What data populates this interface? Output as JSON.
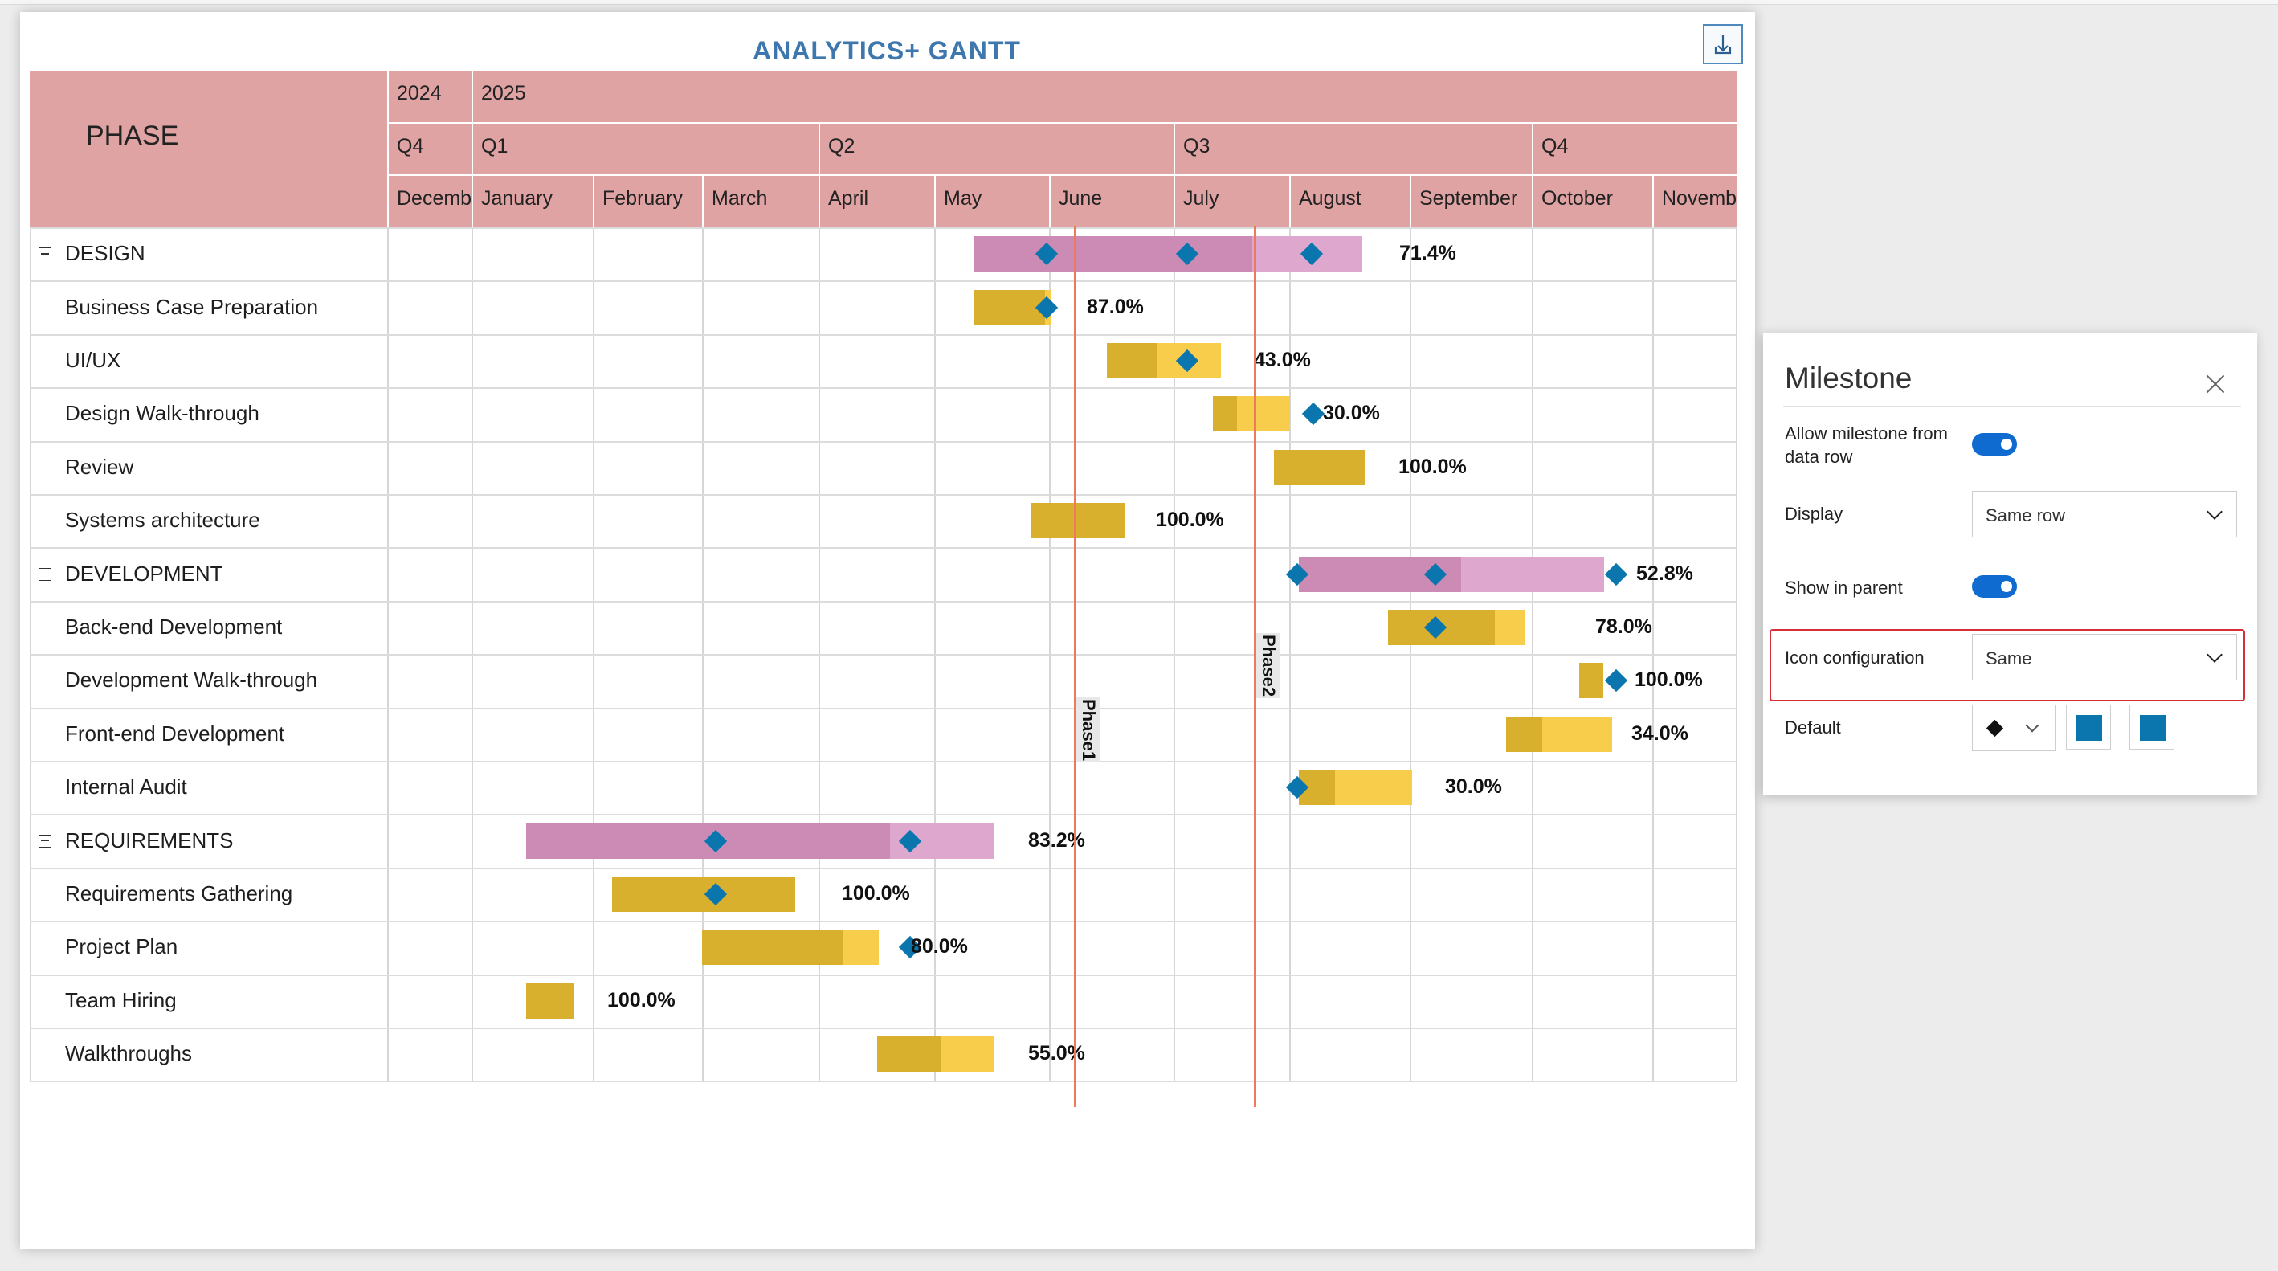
{
  "header": {
    "title": "ANALYTICS+ GANTT"
  },
  "colors": {
    "header_bg": "#e0a3a4",
    "parent_bar": "#cc8bb5",
    "parent_bar_remaining": "#dea8ce",
    "task_bar": "#d9b02e",
    "task_bar_remaining": "#f8cd4c",
    "milestone": "#0b76ae",
    "ref_line": "#ec7b5e",
    "toggle_on": "#0f6bd0"
  },
  "grid": {
    "phase_header": "PHASE",
    "years": [
      "2024",
      "2025"
    ],
    "quarters": [
      "Q4",
      "Q1",
      "Q2",
      "Q3",
      "Q4"
    ],
    "months": [
      "Decemb",
      "January",
      "February",
      "March",
      "April",
      "May",
      "June",
      "July",
      "August",
      "September",
      "October",
      "Novemb"
    ]
  },
  "rows": [
    {
      "label": "DESIGN",
      "parent": true,
      "pct": "71.4%"
    },
    {
      "label": "Business Case Preparation",
      "parent": false,
      "pct": "87.0%"
    },
    {
      "label": "UI/UX",
      "parent": false,
      "pct": "43.0%"
    },
    {
      "label": "Design Walk-through",
      "parent": false,
      "pct": "30.0%"
    },
    {
      "label": "Review",
      "parent": false,
      "pct": "100.0%"
    },
    {
      "label": "Systems architecture",
      "parent": false,
      "pct": "100.0%"
    },
    {
      "label": "DEVELOPMENT",
      "parent": true,
      "pct": "52.8%"
    },
    {
      "label": "Back-end Development",
      "parent": false,
      "pct": "78.0%"
    },
    {
      "label": "Development Walk-through",
      "parent": false,
      "pct": "100.0%"
    },
    {
      "label": "Front-end Development",
      "parent": false,
      "pct": "34.0%"
    },
    {
      "label": "Internal Audit",
      "parent": false,
      "pct": "30.0%"
    },
    {
      "label": "REQUIREMENTS",
      "parent": true,
      "pct": "83.2%"
    },
    {
      "label": "Requirements Gathering",
      "parent": false,
      "pct": "100.0%"
    },
    {
      "label": "Project Plan",
      "parent": false,
      "pct": "80.0%"
    },
    {
      "label": "Team Hiring",
      "parent": false,
      "pct": "100.0%"
    },
    {
      "label": "Walkthroughs",
      "parent": false,
      "pct": "55.0%"
    }
  ],
  "reference_lines": {
    "phase1": "Phase1",
    "phase2": "Phase2"
  },
  "panel": {
    "title": "Milestone",
    "allow_label": "Allow milestone from data row",
    "allow_value": true,
    "display_label": "Display",
    "display_value": "Same row",
    "show_parent_label": "Show in parent",
    "show_parent_value": true,
    "icon_config_label": "Icon configuration",
    "icon_config_value": "Same",
    "default_label": "Default",
    "default_shape_icon": "diamond-icon"
  }
}
